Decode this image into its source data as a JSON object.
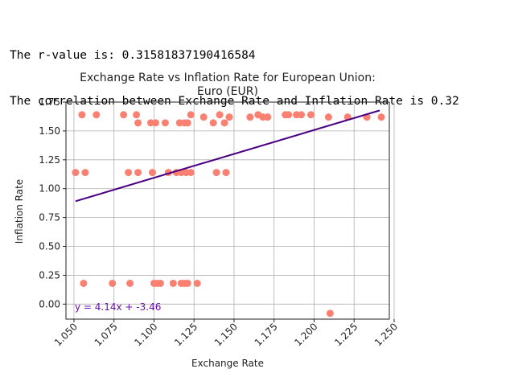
{
  "output": {
    "line1": "The r-value is: 0.31581837190416584",
    "line2": "The correlation between Exchange Rate and Inflation Rate is 0.32"
  },
  "chart_data": {
    "type": "scatter",
    "title_line1": "Exchange Rate vs Inflation Rate for European Union:",
    "title_line2": "Euro (EUR)",
    "xlabel": "Exchange Rate",
    "ylabel": "Inflation Rate",
    "xlim": [
      1.045,
      1.247
    ],
    "ylim": [
      -0.13,
      1.75
    ],
    "x_ticks": [
      1.05,
      1.075,
      1.1,
      1.125,
      1.15,
      1.175,
      1.2,
      1.225,
      1.25
    ],
    "x_tick_labels": [
      "1.050",
      "1.075",
      "1.100",
      "1.125",
      "1.150",
      "1.175",
      "1.200",
      "1.225",
      "1.250"
    ],
    "y_ticks": [
      0.0,
      0.25,
      0.5,
      0.75,
      1.0,
      1.25,
      1.5,
      1.75
    ],
    "y_tick_labels": [
      "0.00",
      "0.25",
      "0.50",
      "0.75",
      "1.00",
      "1.25",
      "1.50",
      "1.75"
    ],
    "grid": true,
    "point_color": "#fa8072",
    "line_color": "#4b0082",
    "equation_color": "#6a0dad",
    "equation_text": "y = 4.14x + -3.46",
    "regression": {
      "slope": 4.14,
      "intercept": -3.46,
      "x_range": [
        1.051,
        1.241
      ]
    },
    "points": [
      [
        1.051,
        1.14
      ],
      [
        1.057,
        1.14
      ],
      [
        1.055,
        1.64
      ],
      [
        1.064,
        1.64
      ],
      [
        1.081,
        1.64
      ],
      [
        1.089,
        1.64
      ],
      [
        1.09,
        1.57
      ],
      [
        1.098,
        1.57
      ],
      [
        1.101,
        1.57
      ],
      [
        1.107,
        1.57
      ],
      [
        1.116,
        1.57
      ],
      [
        1.119,
        1.57
      ],
      [
        1.121,
        1.57
      ],
      [
        1.123,
        1.64
      ],
      [
        1.131,
        1.62
      ],
      [
        1.137,
        1.57
      ],
      [
        1.141,
        1.64
      ],
      [
        1.144,
        1.57
      ],
      [
        1.147,
        1.62
      ],
      [
        1.16,
        1.62
      ],
      [
        1.165,
        1.64
      ],
      [
        1.168,
        1.62
      ],
      [
        1.171,
        1.62
      ],
      [
        1.182,
        1.64
      ],
      [
        1.184,
        1.64
      ],
      [
        1.189,
        1.64
      ],
      [
        1.192,
        1.64
      ],
      [
        1.198,
        1.64
      ],
      [
        1.209,
        1.62
      ],
      [
        1.221,
        1.62
      ],
      [
        1.233,
        1.62
      ],
      [
        1.242,
        1.62
      ],
      [
        1.084,
        1.14
      ],
      [
        1.09,
        1.14
      ],
      [
        1.099,
        1.14
      ],
      [
        1.109,
        1.14
      ],
      [
        1.114,
        1.14
      ],
      [
        1.117,
        1.14
      ],
      [
        1.12,
        1.14
      ],
      [
        1.123,
        1.14
      ],
      [
        1.139,
        1.14
      ],
      [
        1.145,
        1.14
      ],
      [
        1.056,
        0.18
      ],
      [
        1.074,
        0.18
      ],
      [
        1.085,
        0.18
      ],
      [
        1.1,
        0.18
      ],
      [
        1.102,
        0.18
      ],
      [
        1.104,
        0.18
      ],
      [
        1.112,
        0.18
      ],
      [
        1.117,
        0.18
      ],
      [
        1.119,
        0.18
      ],
      [
        1.121,
        0.18
      ],
      [
        1.127,
        0.18
      ],
      [
        1.21,
        -0.08
      ]
    ]
  }
}
